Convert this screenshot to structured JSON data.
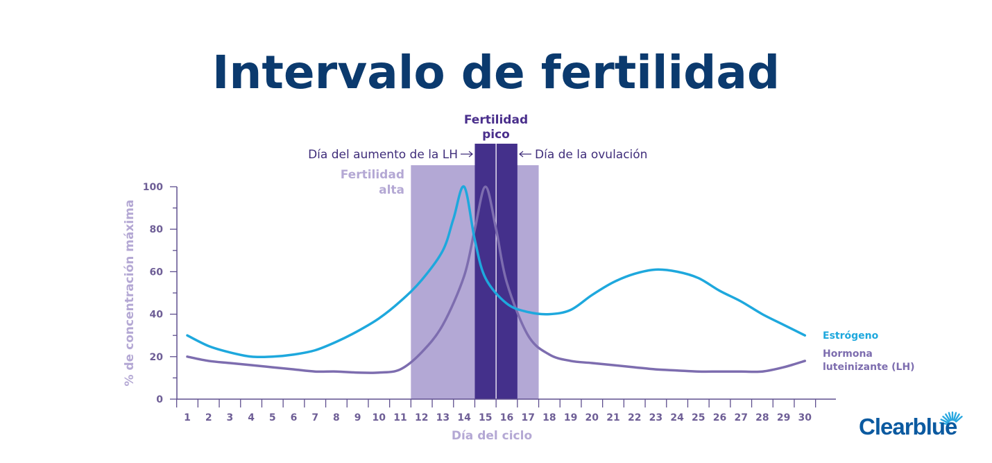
{
  "title": "Intervalo de fertilidad",
  "brand": "Clearblue",
  "annotations": {
    "lh_surge": "Día del aumento de la LH",
    "ovulation": "Día de la ovulación",
    "high_fertility": [
      "Fertilidad",
      "alta"
    ],
    "peak_fertility": [
      "Fertilidad",
      "pico"
    ]
  },
  "colors": {
    "estrogen": "#1ea8dd",
    "lh": "#7d6daf",
    "high_band": "#b3a8d5",
    "peak_band": "#44308b",
    "axis": "#5e4e8e"
  },
  "chart_data": {
    "type": "line",
    "xlabel": "Día del ciclo",
    "ylabel": "% de concentración máxima",
    "ylim": [
      0,
      100
    ],
    "xlim": [
      1,
      30
    ],
    "yticks": [
      0,
      20,
      40,
      60,
      80,
      100
    ],
    "xticks": [
      1,
      2,
      3,
      4,
      5,
      6,
      7,
      8,
      9,
      10,
      11,
      12,
      13,
      14,
      15,
      16,
      17,
      18,
      19,
      20,
      21,
      22,
      23,
      24,
      25,
      26,
      27,
      28,
      29,
      30
    ],
    "bands": [
      {
        "label": "Fertilidad alta",
        "from": 11.5,
        "to": 17.5
      },
      {
        "label": "Fertilidad pico",
        "from": 14.5,
        "to": 16.5
      }
    ],
    "markers": [
      {
        "label": "Día del aumento de la LH",
        "x": 14.5
      },
      {
        "label": "Día de la ovulación",
        "x": 15.5
      }
    ],
    "series": [
      {
        "name": "Estrógeno",
        "x": [
          1,
          2,
          3,
          4,
          5,
          6,
          7,
          8,
          9,
          10,
          11,
          12,
          13,
          13.5,
          14,
          14.5,
          15,
          16,
          17,
          18,
          19,
          20,
          21,
          22,
          23,
          24,
          25,
          26,
          27,
          28,
          29,
          30
        ],
        "values": [
          30,
          25,
          22,
          20,
          20,
          21,
          23,
          27,
          32,
          38,
          46,
          56,
          70,
          85,
          100,
          75,
          57,
          45,
          41,
          40,
          42,
          49,
          55,
          59,
          61,
          60,
          57,
          51,
          46,
          40,
          35,
          30
        ]
      },
      {
        "name": "Hormona luteinizante (LH)",
        "x": [
          1,
          2,
          3,
          4,
          5,
          6,
          7,
          8,
          9,
          10,
          11,
          12,
          13,
          14,
          14.5,
          15,
          15.5,
          16,
          17,
          18,
          19,
          20,
          21,
          22,
          23,
          24,
          25,
          26,
          27,
          28,
          29,
          30
        ],
        "values": [
          20,
          18,
          17,
          16,
          15,
          14,
          13,
          13,
          12.5,
          12.5,
          14,
          22,
          35,
          58,
          80,
          100,
          80,
          55,
          30,
          21,
          18,
          17,
          16,
          15,
          14,
          13.5,
          13,
          13,
          13,
          13,
          15,
          18
        ]
      }
    ]
  }
}
